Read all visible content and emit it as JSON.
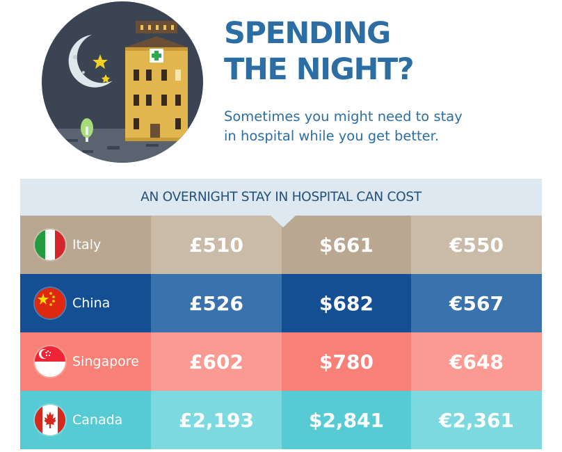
{
  "header": {
    "title_line1": "SPENDING",
    "title_line2": "THE NIGHT?",
    "subtitle_line1": "Sometimes you might need to stay",
    "subtitle_line2": "in hospital while you get better."
  },
  "table": {
    "heading": "AN OVERNIGHT STAY IN HOSPITAL CAN COST",
    "rows": [
      {
        "country": "Italy",
        "flag": "italy-flag-icon",
        "gbp": "£510",
        "usd": "$661",
        "eur": "€550",
        "colors": [
          "#b9a791",
          "#c9bba7",
          "#b9a791",
          "#c9bba7"
        ]
      },
      {
        "country": "China",
        "flag": "china-flag-icon",
        "gbp": "£526",
        "usd": "$682",
        "eur": "€567",
        "colors": [
          "#144f94",
          "#3a72ad",
          "#144f94",
          "#3a72ad"
        ]
      },
      {
        "country": "Singapore",
        "flag": "singapore-flag-icon",
        "gbp": "£602",
        "usd": "$780",
        "eur": "€648",
        "colors": [
          "#f88076",
          "#fa9a92",
          "#f88076",
          "#fa9a92"
        ]
      },
      {
        "country": "Canada",
        "flag": "canada-flag-icon",
        "gbp": "£2,193",
        "usd": "$2,841",
        "eur": "€2,361",
        "colors": [
          "#56cbd4",
          "#7cd9df",
          "#56cbd4",
          "#7cd9df"
        ]
      }
    ]
  }
}
